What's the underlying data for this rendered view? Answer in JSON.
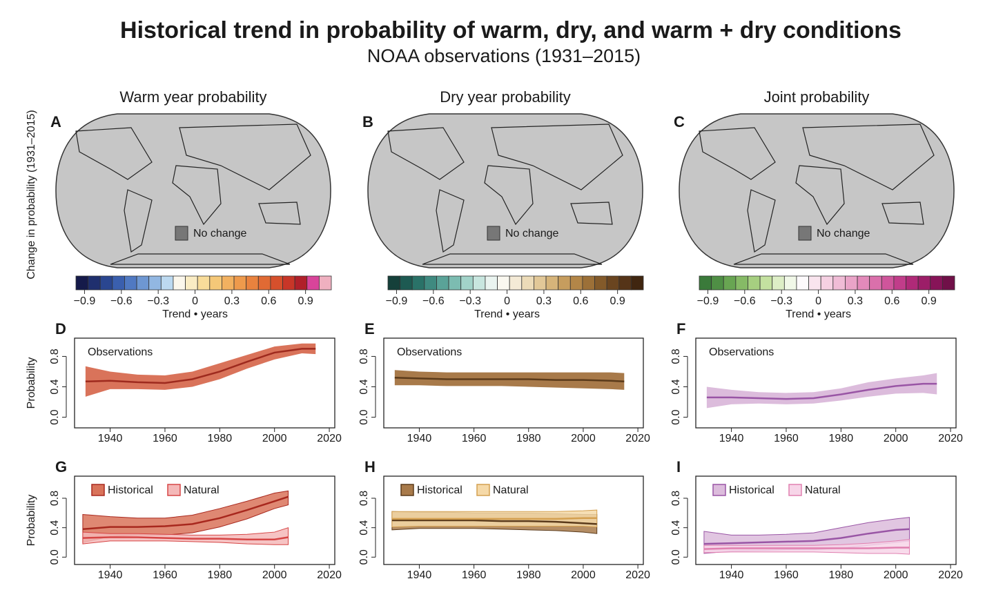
{
  "title": "Historical trend in probability of warm, dry, and warm + dry conditions",
  "subtitle": "NOAA observations (1931–2015)",
  "map_axis_label": "Change in probability (1931–2015)",
  "maps": [
    {
      "letter": "A",
      "title": "Warm year probability",
      "no_change_label": "No change",
      "colorbar": {
        "colors": [
          "#151a4a",
          "#1f2f6e",
          "#2a4690",
          "#3a5fae",
          "#5079c2",
          "#6e97d2",
          "#92b7e2",
          "#bcd9f0",
          "#fbf7ec",
          "#faecc4",
          "#f8dc9a",
          "#f5c878",
          "#f2b160",
          "#ee9a4c",
          "#e9823e",
          "#e06a34",
          "#d6502c",
          "#c83628",
          "#b0202a",
          "#d8449a",
          "#efb0c0"
        ],
        "lim": [
          -0.97,
          1.11
        ],
        "label": "Trend • years",
        "ticks": [
          {
            "value": -0.9,
            "label": "−0.9"
          },
          {
            "value": -0.6,
            "label": "−0.6"
          },
          {
            "value": -0.3,
            "label": "−0.3"
          },
          0,
          0.3,
          0.6,
          0.9
        ]
      }
    },
    {
      "letter": "B",
      "title": "Dry year probability",
      "no_change_label": "No change",
      "colorbar": {
        "colors": [
          "#15403a",
          "#1d5a52",
          "#2a7268",
          "#3f8a80",
          "#5aa398",
          "#7cbcb1",
          "#a2d3c9",
          "#c8e6df",
          "#eaf4f0",
          "#faf8f0",
          "#f4ead6",
          "#ecdbb8",
          "#e2c898",
          "#d6b47a",
          "#c69d5e",
          "#b38648",
          "#9c7038",
          "#835a2a",
          "#6a4520",
          "#553418",
          "#402610"
        ],
        "lim": [
          -0.97,
          1.11
        ],
        "label": "Trend • years",
        "ticks": [
          {
            "value": -0.9,
            "label": "−0.9"
          },
          {
            "value": -0.6,
            "label": "−0.6"
          },
          {
            "value": -0.3,
            "label": "−0.3"
          },
          0,
          0.3,
          0.6,
          0.9
        ]
      }
    },
    {
      "letter": "C",
      "title": "Joint probability",
      "no_change_label": "No change",
      "colorbar": {
        "colors": [
          "#3a7a3a",
          "#4f8f45",
          "#68a552",
          "#86ba66",
          "#a6cf80",
          "#c4e1a0",
          "#ddeec6",
          "#f1f8e8",
          "#fdfafc",
          "#f9e4ee",
          "#f5d0e2",
          "#f0bcd6",
          "#eaa4c8",
          "#e38aba",
          "#da70ab",
          "#cf559b",
          "#c13d8a",
          "#b02a78",
          "#9c1e68",
          "#871458",
          "#701048"
        ],
        "lim": [
          -0.97,
          1.11
        ],
        "label": "Trend • years",
        "ticks": [
          {
            "value": -0.9,
            "label": "−0.9"
          },
          {
            "value": -0.6,
            "label": "−0.6"
          },
          {
            "value": -0.3,
            "label": "−0.3"
          },
          0,
          0.3,
          0.6,
          0.9
        ]
      }
    }
  ],
  "chart_data": [
    {
      "type": "line",
      "letter": "D",
      "ylabel": "Probability",
      "x": [
        1931,
        1940,
        1950,
        1960,
        1970,
        1980,
        1990,
        2000,
        2010,
        2015
      ],
      "xlim": [
        1927,
        2022
      ],
      "xticks": [
        1940,
        1960,
        1980,
        2000,
        2020
      ],
      "ylim": [
        -0.14,
        1.04
      ],
      "yticks": [
        {
          "value": 0,
          "label": "0.0"
        },
        0.4,
        0.8
      ],
      "series": [
        {
          "name": "Observations",
          "color": "#9e2a1e",
          "band_color": "#d9735a",
          "values": [
            0.47,
            0.48,
            0.46,
            0.45,
            0.5,
            0.6,
            0.73,
            0.85,
            0.9,
            0.9
          ],
          "lower": [
            0.27,
            0.37,
            0.37,
            0.36,
            0.4,
            0.5,
            0.64,
            0.76,
            0.84,
            0.83
          ],
          "upper": [
            0.67,
            0.6,
            0.56,
            0.55,
            0.6,
            0.71,
            0.82,
            0.93,
            0.97,
            0.97
          ]
        }
      ]
    },
    {
      "type": "line",
      "letter": "E",
      "x": [
        1931,
        1940,
        1950,
        1960,
        1970,
        1980,
        1990,
        2000,
        2010,
        2015
      ],
      "xlim": [
        1927,
        2022
      ],
      "xticks": [
        1940,
        1960,
        1980,
        2000,
        2020
      ],
      "ylim": [
        -0.14,
        1.04
      ],
      "yticks": [
        {
          "value": 0,
          "label": "0.0"
        },
        0.4,
        0.8
      ],
      "series": [
        {
          "name": "Observations",
          "color": "#5a3a1a",
          "band_color": "#a87a4a",
          "values": [
            0.52,
            0.51,
            0.5,
            0.5,
            0.5,
            0.5,
            0.49,
            0.49,
            0.48,
            0.47
          ],
          "lower": [
            0.42,
            0.42,
            0.41,
            0.41,
            0.41,
            0.4,
            0.39,
            0.38,
            0.37,
            0.36
          ],
          "upper": [
            0.62,
            0.6,
            0.59,
            0.59,
            0.59,
            0.59,
            0.59,
            0.59,
            0.59,
            0.58
          ]
        }
      ]
    },
    {
      "type": "line",
      "letter": "F",
      "x": [
        1931,
        1940,
        1950,
        1960,
        1970,
        1980,
        1990,
        2000,
        2010,
        2015
      ],
      "xlim": [
        1927,
        2022
      ],
      "xticks": [
        1940,
        1960,
        1980,
        2000,
        2020
      ],
      "ylim": [
        -0.14,
        1.04
      ],
      "yticks": [
        {
          "value": 0,
          "label": "0.0"
        },
        0.4,
        0.8
      ],
      "series": [
        {
          "name": "Observations",
          "color": "#9955a5",
          "band_color": "#dcbcdc",
          "values": [
            0.26,
            0.26,
            0.25,
            0.24,
            0.25,
            0.3,
            0.36,
            0.41,
            0.44,
            0.44
          ],
          "lower": [
            0.12,
            0.17,
            0.18,
            0.17,
            0.18,
            0.22,
            0.27,
            0.31,
            0.32,
            0.3
          ],
          "upper": [
            0.4,
            0.36,
            0.33,
            0.32,
            0.33,
            0.38,
            0.46,
            0.51,
            0.55,
            0.58
          ]
        }
      ]
    },
    {
      "type": "line",
      "letter": "G",
      "ylabel": "Probability",
      "x": [
        1930,
        1940,
        1950,
        1960,
        1970,
        1980,
        1990,
        2000,
        2005
      ],
      "xlim": [
        1927,
        2022
      ],
      "xticks": [
        1940,
        1960,
        1980,
        2000,
        2020
      ],
      "ylim": [
        -0.1,
        1.1
      ],
      "yticks": [
        {
          "value": 0,
          "label": "0.0"
        },
        0.4,
        0.8
      ],
      "series": [
        {
          "name": "Historical",
          "color": "#a8281e",
          "band_color": "#d9735a",
          "values": [
            0.38,
            0.41,
            0.41,
            0.42,
            0.45,
            0.53,
            0.64,
            0.76,
            0.82
          ],
          "lower": [
            0.2,
            0.28,
            0.3,
            0.3,
            0.33,
            0.41,
            0.52,
            0.66,
            0.71
          ],
          "upper": [
            0.58,
            0.55,
            0.53,
            0.53,
            0.57,
            0.66,
            0.76,
            0.87,
            0.9
          ]
        },
        {
          "name": "Natural",
          "color": "#d64545",
          "band_color": "#f4b8b8",
          "values": [
            0.26,
            0.27,
            0.27,
            0.26,
            0.25,
            0.25,
            0.24,
            0.24,
            0.27
          ],
          "lower": [
            0.18,
            0.22,
            0.22,
            0.22,
            0.21,
            0.2,
            0.18,
            0.17,
            0.17
          ],
          "upper": [
            0.34,
            0.32,
            0.32,
            0.31,
            0.3,
            0.3,
            0.31,
            0.34,
            0.4
          ]
        }
      ]
    },
    {
      "type": "line",
      "letter": "H",
      "x": [
        1930,
        1940,
        1950,
        1960,
        1970,
        1980,
        1990,
        2000,
        2005
      ],
      "xlim": [
        1927,
        2022
      ],
      "xticks": [
        1940,
        1960,
        1980,
        2000,
        2020
      ],
      "ylim": [
        -0.1,
        1.1
      ],
      "yticks": [
        {
          "value": 0,
          "label": "0.0"
        },
        0.4,
        0.8
      ],
      "series": [
        {
          "name": "Historical",
          "color": "#5a3a1a",
          "band_color": "#a87a4a",
          "values": [
            0.5,
            0.5,
            0.5,
            0.5,
            0.49,
            0.49,
            0.48,
            0.46,
            0.45
          ],
          "lower": [
            0.37,
            0.39,
            0.39,
            0.39,
            0.38,
            0.37,
            0.36,
            0.34,
            0.32
          ],
          "upper": [
            0.62,
            0.61,
            0.61,
            0.6,
            0.6,
            0.6,
            0.59,
            0.58,
            0.58
          ]
        },
        {
          "name": "Natural",
          "color": "#d4a050",
          "band_color": "#f5d9a8",
          "values": [
            0.52,
            0.52,
            0.52,
            0.52,
            0.52,
            0.52,
            0.52,
            0.53,
            0.53
          ],
          "lower": [
            0.41,
            0.42,
            0.42,
            0.42,
            0.42,
            0.42,
            0.42,
            0.42,
            0.41
          ],
          "upper": [
            0.62,
            0.62,
            0.62,
            0.62,
            0.62,
            0.62,
            0.62,
            0.63,
            0.64
          ]
        }
      ]
    },
    {
      "type": "line",
      "letter": "I",
      "x": [
        1930,
        1940,
        1950,
        1960,
        1970,
        1980,
        1990,
        2000,
        2005
      ],
      "xlim": [
        1927,
        2022
      ],
      "xticks": [
        1940,
        1960,
        1980,
        2000,
        2020
      ],
      "ylim": [
        -0.1,
        1.1
      ],
      "yticks": [
        {
          "value": 0,
          "label": "0.0"
        },
        0.4,
        0.8
      ],
      "series": [
        {
          "name": "Historical",
          "color": "#9955a5",
          "band_color": "#dcbcdc",
          "values": [
            0.18,
            0.19,
            0.2,
            0.21,
            0.22,
            0.26,
            0.32,
            0.37,
            0.38
          ],
          "lower": [
            0.05,
            0.08,
            0.09,
            0.1,
            0.1,
            0.12,
            0.16,
            0.2,
            0.22
          ],
          "upper": [
            0.35,
            0.3,
            0.3,
            0.31,
            0.33,
            0.4,
            0.47,
            0.52,
            0.54
          ]
        },
        {
          "name": "Natural",
          "color": "#e080b0",
          "band_color": "#f7d5e8",
          "values": [
            0.11,
            0.12,
            0.12,
            0.12,
            0.12,
            0.12,
            0.12,
            0.13,
            0.13
          ],
          "lower": [
            0.06,
            0.07,
            0.07,
            0.07,
            0.07,
            0.06,
            0.05,
            0.05,
            0.04
          ],
          "upper": [
            0.16,
            0.16,
            0.16,
            0.16,
            0.16,
            0.17,
            0.19,
            0.22,
            0.24
          ]
        }
      ]
    }
  ]
}
